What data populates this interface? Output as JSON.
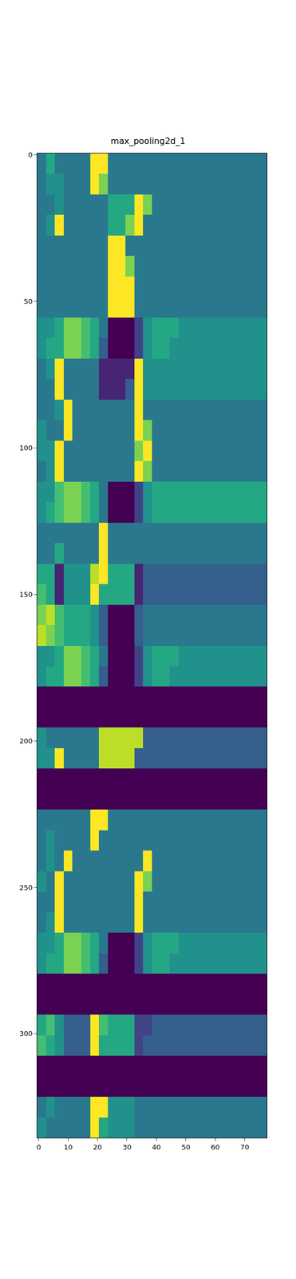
{
  "chart_data": {
    "type": "heatmap",
    "title": "max_pooling2d_1",
    "color": "Viridis",
    "x": [
      1,
      4,
      7,
      10,
      13,
      16,
      19,
      22,
      25,
      28,
      31,
      34,
      37,
      40,
      43,
      46,
      49,
      52,
      55,
      58,
      61,
      64,
      67,
      70,
      73,
      76
    ],
    "y": [
      3,
      10,
      17,
      24,
      31,
      38,
      45,
      52,
      59,
      66,
      73,
      80,
      87,
      94,
      101,
      108,
      115,
      122,
      129,
      136,
      143,
      150,
      157,
      164,
      171,
      178,
      185,
      192,
      199,
      206,
      213,
      220,
      227,
      234,
      241,
      248,
      255,
      262,
      269,
      276,
      283,
      290,
      297,
      304,
      311,
      318,
      325,
      332
    ],
    "z": [
      [
        4,
        6,
        4,
        4,
        4,
        4,
        10,
        10,
        4,
        4,
        4,
        4,
        4,
        4,
        4,
        4,
        4,
        4,
        4,
        4,
        4,
        4,
        4,
        4,
        4,
        4
      ],
      [
        4,
        5,
        5,
        4,
        4,
        4,
        10,
        8,
        4,
        4,
        4,
        4,
        4,
        4,
        4,
        4,
        4,
        4,
        4,
        4,
        4,
        4,
        4,
        4,
        4,
        4
      ],
      [
        4,
        4,
        5,
        4,
        4,
        4,
        4,
        4,
        6,
        6,
        6,
        10,
        8,
        4,
        4,
        4,
        4,
        4,
        4,
        4,
        4,
        4,
        4,
        4,
        4,
        4
      ],
      [
        4,
        5,
        10,
        4,
        4,
        4,
        4,
        4,
        6,
        6,
        8,
        10,
        4,
        4,
        4,
        4,
        4,
        4,
        4,
        4,
        4,
        4,
        4,
        4,
        4,
        4
      ],
      [
        4,
        4,
        4,
        4,
        4,
        4,
        4,
        4,
        10,
        10,
        4,
        4,
        4,
        4,
        4,
        4,
        4,
        4,
        4,
        4,
        4,
        4,
        4,
        4,
        4,
        4
      ],
      [
        4,
        4,
        4,
        4,
        4,
        4,
        4,
        4,
        10,
        10,
        8,
        4,
        4,
        4,
        4,
        4,
        4,
        4,
        4,
        4,
        4,
        4,
        4,
        4,
        4,
        4
      ],
      [
        4,
        4,
        4,
        4,
        4,
        4,
        4,
        4,
        10,
        10,
        10,
        4,
        4,
        4,
        4,
        4,
        4,
        4,
        4,
        4,
        4,
        4,
        4,
        4,
        4,
        4
      ],
      [
        4,
        4,
        4,
        4,
        4,
        4,
        4,
        4,
        10,
        10,
        10,
        4,
        4,
        4,
        4,
        4,
        4,
        4,
        4,
        4,
        4,
        4,
        4,
        4,
        4,
        4
      ],
      [
        5,
        5,
        6,
        8,
        8,
        7,
        6,
        4,
        0,
        0,
        0,
        2,
        5,
        6,
        6,
        6,
        5,
        5,
        5,
        5,
        5,
        5,
        5,
        5,
        5,
        5
      ],
      [
        5,
        6,
        6,
        8,
        8,
        7,
        6,
        3,
        0,
        0,
        0,
        2,
        5,
        6,
        6,
        5,
        5,
        5,
        5,
        5,
        5,
        5,
        5,
        5,
        5,
        5
      ],
      [
        4,
        5,
        10,
        4,
        4,
        4,
        4,
        1,
        1,
        1,
        1,
        10,
        5,
        5,
        5,
        5,
        5,
        5,
        5,
        5,
        5,
        5,
        5,
        5,
        5,
        5
      ],
      [
        4,
        4,
        10,
        4,
        4,
        4,
        4,
        1,
        1,
        1,
        3,
        10,
        5,
        5,
        5,
        5,
        5,
        5,
        5,
        5,
        5,
        5,
        5,
        5,
        5,
        5
      ],
      [
        4,
        4,
        5,
        10,
        4,
        4,
        4,
        4,
        4,
        4,
        4,
        10,
        4,
        4,
        4,
        4,
        4,
        4,
        4,
        4,
        4,
        4,
        4,
        4,
        4,
        4
      ],
      [
        5,
        4,
        4,
        10,
        4,
        4,
        4,
        4,
        4,
        4,
        4,
        10,
        8,
        4,
        4,
        4,
        4,
        4,
        4,
        4,
        4,
        4,
        4,
        4,
        4,
        4
      ],
      [
        5,
        5,
        10,
        4,
        4,
        4,
        4,
        4,
        4,
        4,
        4,
        8,
        10,
        4,
        4,
        4,
        4,
        4,
        4,
        4,
        4,
        4,
        4,
        4,
        4,
        4
      ],
      [
        4,
        5,
        10,
        4,
        4,
        4,
        4,
        4,
        4,
        4,
        4,
        10,
        8,
        4,
        4,
        4,
        4,
        4,
        4,
        4,
        4,
        4,
        4,
        4,
        4,
        4
      ],
      [
        5,
        5,
        7,
        8,
        8,
        7,
        6,
        4,
        0,
        0,
        0,
        2,
        5,
        6,
        6,
        6,
        6,
        6,
        6,
        6,
        6,
        6,
        6,
        6,
        6,
        6
      ],
      [
        5,
        6,
        7,
        8,
        8,
        7,
        6,
        4,
        0,
        0,
        0,
        2,
        5,
        6,
        6,
        6,
        6,
        6,
        6,
        6,
        6,
        6,
        6,
        6,
        6,
        6
      ],
      [
        4,
        4,
        4,
        4,
        4,
        4,
        4,
        10,
        4,
        4,
        4,
        4,
        4,
        4,
        4,
        4,
        4,
        4,
        4,
        4,
        4,
        4,
        4,
        4,
        4,
        4
      ],
      [
        4,
        4,
        6,
        4,
        4,
        4,
        4,
        10,
        4,
        4,
        4,
        4,
        4,
        4,
        4,
        4,
        4,
        4,
        4,
        4,
        4,
        4,
        4,
        4,
        4,
        4
      ],
      [
        6,
        6,
        1,
        5,
        5,
        5,
        9,
        10,
        6,
        6,
        6,
        1,
        3,
        3,
        3,
        3,
        3,
        3,
        3,
        3,
        3,
        3,
        3,
        3,
        3,
        3
      ],
      [
        7,
        6,
        1,
        5,
        5,
        5,
        10,
        6,
        6,
        6,
        6,
        1,
        3,
        3,
        3,
        3,
        3,
        3,
        3,
        3,
        3,
        3,
        3,
        3,
        3,
        3
      ],
      [
        8,
        9,
        7,
        6,
        6,
        6,
        5,
        3,
        0,
        0,
        0,
        3,
        4,
        4,
        4,
        4,
        4,
        4,
        4,
        4,
        4,
        4,
        4,
        4,
        4,
        4
      ],
      [
        9,
        8,
        7,
        6,
        6,
        6,
        5,
        3,
        0,
        0,
        0,
        3,
        4,
        4,
        4,
        4,
        4,
        4,
        4,
        4,
        4,
        4,
        4,
        4,
        4,
        4
      ],
      [
        5,
        5,
        6,
        8,
        8,
        7,
        6,
        4,
        0,
        0,
        0,
        2,
        5,
        6,
        6,
        6,
        5,
        5,
        5,
        5,
        5,
        5,
        5,
        5,
        5,
        5
      ],
      [
        5,
        6,
        6,
        8,
        8,
        7,
        6,
        3,
        0,
        0,
        0,
        2,
        5,
        6,
        6,
        5,
        5,
        5,
        5,
        5,
        5,
        5,
        5,
        5,
        5,
        5
      ],
      [
        0,
        0,
        0,
        0,
        0,
        0,
        0,
        0,
        0,
        0,
        0,
        0,
        0,
        0,
        0,
        0,
        0,
        0,
        0,
        0,
        0,
        0,
        0,
        0,
        0,
        0
      ],
      [
        0,
        0,
        0,
        0,
        0,
        0,
        0,
        0,
        0,
        0,
        0,
        0,
        0,
        0,
        0,
        0,
        0,
        0,
        0,
        0,
        0,
        0,
        0,
        0,
        0,
        0
      ],
      [
        5,
        4,
        4,
        4,
        4,
        4,
        4,
        9,
        9,
        9,
        9,
        9,
        3,
        3,
        3,
        3,
        3,
        3,
        3,
        3,
        3,
        3,
        3,
        3,
        3,
        3
      ],
      [
        5,
        5,
        10,
        4,
        4,
        4,
        4,
        9,
        9,
        9,
        9,
        3,
        3,
        3,
        3,
        3,
        3,
        3,
        3,
        3,
        3,
        3,
        3,
        3,
        3,
        3
      ],
      [
        0,
        0,
        0,
        0,
        0,
        0,
        0,
        0,
        0,
        0,
        0,
        0,
        0,
        0,
        0,
        0,
        0,
        0,
        0,
        0,
        0,
        0,
        0,
        0,
        0,
        0
      ],
      [
        0,
        0,
        0,
        0,
        0,
        0,
        0,
        0,
        0,
        0,
        0,
        0,
        0,
        0,
        0,
        0,
        0,
        0,
        0,
        0,
        0,
        0,
        0,
        0,
        0,
        0
      ],
      [
        4,
        4,
        4,
        4,
        4,
        4,
        10,
        10,
        4,
        4,
        4,
        4,
        4,
        4,
        4,
        4,
        4,
        4,
        4,
        4,
        4,
        4,
        4,
        4,
        4,
        4
      ],
      [
        4,
        5,
        4,
        4,
        4,
        4,
        10,
        4,
        4,
        4,
        4,
        4,
        4,
        4,
        4,
        4,
        4,
        4,
        4,
        4,
        4,
        4,
        4,
        4,
        4,
        4
      ],
      [
        4,
        5,
        4,
        10,
        4,
        4,
        4,
        4,
        4,
        4,
        4,
        4,
        10,
        4,
        4,
        4,
        4,
        4,
        4,
        4,
        4,
        4,
        4,
        4,
        4,
        4
      ],
      [
        5,
        4,
        10,
        4,
        4,
        4,
        4,
        4,
        4,
        4,
        4,
        10,
        8,
        4,
        4,
        4,
        4,
        4,
        4,
        4,
        4,
        4,
        4,
        4,
        4,
        4
      ],
      [
        4,
        4,
        10,
        4,
        4,
        4,
        4,
        4,
        4,
        4,
        4,
        10,
        4,
        4,
        4,
        4,
        4,
        4,
        4,
        4,
        4,
        4,
        4,
        4,
        4,
        4
      ],
      [
        4,
        5,
        10,
        4,
        4,
        4,
        4,
        4,
        4,
        4,
        4,
        10,
        4,
        4,
        4,
        4,
        4,
        4,
        4,
        4,
        4,
        4,
        4,
        4,
        4,
        4
      ],
      [
        5,
        5,
        6,
        8,
        8,
        7,
        6,
        4,
        0,
        0,
        0,
        2,
        5,
        6,
        6,
        6,
        5,
        5,
        5,
        5,
        5,
        5,
        5,
        5,
        5,
        5
      ],
      [
        5,
        6,
        6,
        8,
        8,
        7,
        6,
        3,
        0,
        0,
        0,
        2,
        5,
        6,
        6,
        5,
        5,
        5,
        5,
        5,
        5,
        5,
        5,
        5,
        5,
        5
      ],
      [
        0,
        0,
        0,
        0,
        0,
        0,
        0,
        0,
        0,
        0,
        0,
        0,
        0,
        0,
        0,
        0,
        0,
        0,
        0,
        0,
        0,
        0,
        0,
        0,
        0,
        0
      ],
      [
        0,
        0,
        0,
        0,
        0,
        0,
        0,
        0,
        0,
        0,
        0,
        0,
        0,
        0,
        0,
        0,
        0,
        0,
        0,
        0,
        0,
        0,
        0,
        0,
        0,
        0
      ],
      [
        6,
        7,
        5,
        3,
        3,
        3,
        10,
        7,
        6,
        6,
        6,
        2,
        2,
        3,
        3,
        3,
        3,
        3,
        3,
        3,
        3,
        3,
        3,
        3,
        3,
        3
      ],
      [
        7,
        6,
        5,
        3,
        3,
        3,
        10,
        6,
        6,
        6,
        6,
        2,
        3,
        3,
        3,
        3,
        3,
        3,
        3,
        3,
        3,
        3,
        3,
        3,
        3,
        3
      ],
      [
        0,
        0,
        0,
        0,
        0,
        0,
        0,
        0,
        0,
        0,
        0,
        0,
        0,
        0,
        0,
        0,
        0,
        0,
        0,
        0,
        0,
        0,
        0,
        0,
        0,
        0
      ],
      [
        0,
        0,
        0,
        0,
        0,
        0,
        0,
        0,
        0,
        0,
        0,
        0,
        0,
        0,
        0,
        0,
        0,
        0,
        0,
        0,
        0,
        0,
        0,
        0,
        0,
        0
      ],
      [
        4,
        5,
        4,
        4,
        4,
        4,
        10,
        10,
        5,
        5,
        5,
        4,
        4,
        4,
        4,
        4,
        4,
        4,
        4,
        4,
        4,
        4,
        4,
        4,
        4,
        4
      ],
      [
        5,
        4,
        4,
        4,
        4,
        4,
        10,
        6,
        5,
        5,
        5,
        4,
        4,
        4,
        4,
        4,
        4,
        4,
        4,
        4,
        4,
        4,
        4,
        4,
        4,
        4
      ]
    ],
    "zlim": [
      0,
      10
    ],
    "xlim": [
      -0.5,
      77.5
    ],
    "xticks": [
      0,
      10,
      20,
      30,
      40,
      50,
      60,
      70
    ],
    "ylim": [
      335.5,
      -0.5
    ],
    "yticks": [
      0,
      50,
      100,
      150,
      200,
      250,
      300
    ]
  }
}
